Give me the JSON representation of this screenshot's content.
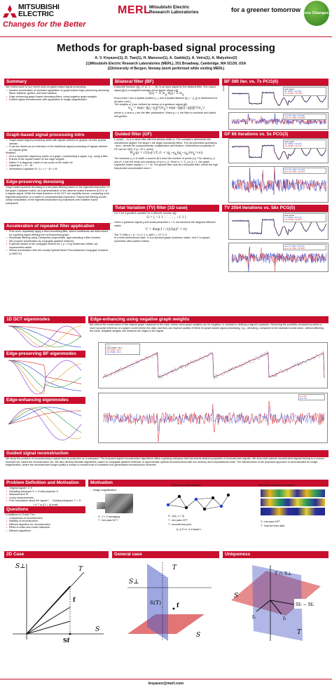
{
  "header": {
    "brand_line1": "MITSUBISHI",
    "brand_line2": "ELECTRIC",
    "brand_slogan": "Changes for the Better",
    "merl": "MERL",
    "merl_sub1": "Mitsubishi Electric",
    "merl_sub2": "Research Laboratories",
    "tagline": "for a greener tomorrow",
    "eco": "eco Changes",
    "title": "Methods for graph-based signal processing",
    "authors": "A. V. Knyazev(1), D. Tian(1), H. Mansour(1), A. Gadde(1), A. Vetro(1), A. Malyshev(2)",
    "aff1": "(1)Mitsubishi Electric Research Laboratories (MERL), 201 Broadway, Cambridge, MA 02139, USA",
    "aff2": "(2)University of Bergen, Norway (work performed while visiting MERL)"
  },
  "summary": {
    "title": "Summary",
    "intro": "We review some of our recent work on graph-based signal processing:",
    "bullets": [
      "Iterative acceleration of repeated application of graph-based edge-preserving denoising filters: bilateral, guided, and total variation",
      "Edge-enhancing graph-based denoising filters, using negative graph weights",
      "Guided signal reconstruction with application to image magnification"
    ]
  },
  "intro_sec": {
    "title": "Graph-based signal processing intro",
    "bullets": [
      "Graph-based signal processing deals with signals defined on graphs, as their special domain.",
      "It can be viewed as an extension of the traditional signal processing of signals defined on regular grids."
    ],
    "notation": "Notation:",
    "notes": [
      "W is a symmetric adjacency matrix of a graph, representing a signal, e.g., using a filter",
      "Entries of the square matrix W are edge weights",
      "Matrix D is diagonal, made of row-sums of the matrix W.",
      "Laplacian L = D − W",
      "Normalized Laplacian D^-1 L = I − D^-1 W"
    ]
  },
  "edge_sec": {
    "title": "Edge-preserving denoising",
    "text": "Graph-based spectral denoising is a low-pass filtering based on the eigendecomposition of the graph Laplacian matrix, as a generalization of the discrete cosine transform (DCT), of a regular signal. While the basis functions of the DCT are explicitly known, computing a full eigendecomposition of a matrix is computationally expensive. Polynomial filtering avoids costly computation of the eigendecomposition by projections onto suitable Krylov subspaces."
  },
  "accel_sec": {
    "title": "Acceleration of repeated filter application",
    "bullets": [
      "Prior work: repeatedly apply a fixed smoothing filter, where coefficients are determined by a guiding signal defining the corresponding graph.",
      "Accelerate filtering using Chebyshev polynomials, approximating a filter function.",
      "We propose acceleration by conjugate gradient methods.",
      "A special variant of the conjugate method for L y = 0 by Hesteness-Stiefel, we implemented earlier.",
      "Similar acceleration with the Locally Optimal Block Preconditioned Conjugate Gradient (LOBPCG)."
    ]
  },
  "bilateral": {
    "title": "Bilateral filter (BF)",
    "text1": "A discrete function x[j], j ∈ {1, 2, ..., N}, is an input signal for the bilateral filter. The output signal y[i] is a weighted average of the signal values x[j]:",
    "text2": "Every index i has a spatial position p_i, and a spatial distance ||p_i − p_j|| is determined for all pairs i and j.",
    "text3": "The weights w_ij are defined by means of a guidance signal g[i]:",
    "text4": "where σ_d and σ_r are the filter parameters. When g = x, the filter is nonlinear and called self-guided."
  },
  "guided": {
    "title": "Guided filter (GF)",
    "text1": "f_mean(·, ω) is a mean filter with the window width ω. The constant ε determines the smoothness degree: the larger ε the larger smoothing effect. The dot preceded operations, · and /, denote the componentwise multiplication and division. Arithmetical complexity of GF can be O(N). If g = W x, where",
    "text2": "The windows ω_k of width ω around all k have the number of points |ω|. The values μ_k and σ²_k are the mean and variance of g in ω_k. Since d_i = Σ_j w_ij = 1, the graph Laplacian matrix equals L = I − W. The guided filter acts as a low-pass filter, where the high frequencies accumulated near 0."
  },
  "tv": {
    "title": "Total Variation (TV) filter (1D case)",
    "text1": "Let G be a gradient operator for a discrete function x[j]:",
    "text2": "Given a guidance signal g and small parameter ε > 0, we introduce the diagonal diffusion matrix",
    "text3": "The TV filter y = (I + λ L)^-1 x, with L = G* C G.",
    "text4": "In a multi-dimensional case, G is a directed graph incidence matrix, and C is square, symmetric with positive entries."
  },
  "bf390": {
    "title": "BF 390 iter. vs. 7x PCG(6)",
    "legend1": [
      "clean signal",
      "BF: PSNR = 30.3782",
      "CG: PSNR = 30.3785"
    ],
    "legend2": [
      "error BF: SNR = 30.3782",
      "error CG: SNR = 30.3785"
    ],
    "ylabel1": "signal",
    "ylabel2": "signal error"
  },
  "gf66": {
    "title": "GF 66 iterations vs. 5x PCG(3)",
    "legend1": [
      "clean signal",
      "GF: PSNR = 33.2164",
      "CG: PSNR = 33.7147"
    ],
    "legend2": [
      "error GF: SNR = 33.2164",
      "error CG: SNR = 33.7147"
    ],
    "ylabel1": "signal",
    "ylabel2": "signal error"
  },
  "tv2554": {
    "title": "TV 2554 iterations vs. 58x PCG(5)",
    "legend1": [
      "clean signal",
      "TV: PSNR = 32.2713",
      "CG: PSNR = 32.2697"
    ],
    "legend2": [
      "error TV: SNR = 32.2713",
      "error CG: SNR = 32.2697"
    ],
    "ylabel1": "signal",
    "ylabel2": "signal error"
  },
  "dct": {
    "title": "1D DCT eigenmodes"
  },
  "bfeig": {
    "title": "Edge-preserving BF eigenmodes"
  },
  "eeig": {
    "title": "Edge-enhancing eigenmodes"
  },
  "neg": {
    "title": "Edge-enhancing using negative graph weights",
    "text": "We extend the construction of the original graph Laplacian to the case, where some graph weights can be negative, in contrast to defining a signed Laplacian. Removing the positivity constraint provides a more accurate inference of a graph model behind the data, and thus can improve quality of filters for graph-based signal processing, e.g., denoising, compared to the standard construction, without affecting the costs. Negative weights can enhance the edges in the signal.",
    "legend_top": [
      "noisy",
      "clean PSNR = 26.3",
      "CG: PSNR = 29.6",
      "CG: PSNR = 30.2"
    ],
    "legend_bot": [
      "error BF",
      "error CG"
    ]
  },
  "gsr": {
    "title": "Guided signal reconstruction",
    "text": "We study the problem of reconstructing a signal from its projection on a subspace. The proposed signal reconstruction algorithms utilize a guiding subspace that represents desired properties of reconstructed signals. We show that optimal reconstructed signals belong to a convex bounded set, called the reconstruction set. We also develop iterative algorithms, based on conjugate gradient methods, to approximate optimal reconstructions with low memory and computational costs. The effectiveness of the proposed approach is demonstrated for image magnification, where the reconstructed image quality is shown to exceed that of consistent and generalized reconstruction schemes."
  },
  "problem": {
    "title": "Problem Definition and Motivation",
    "bullets": [
      "Original signal f ∈ H",
      "Sampling subspace S ⊂ H with projector S",
      "Measurement Sf",
      "Lossy measurements",
      "Prior information about the signal f → Guiding subspace T ⊂ H"
    ],
    "ineq": "f ∈ T  or  ||T⊥ f|| small"
  },
  "questions": {
    "title": "Questions",
    "intro": "Conditions on S and T for:",
    "bullets": [
      "Uniqueness of reconstruction",
      "Stability of reconstruction",
      "Efficient algorithm for reconstruction",
      "Effect of noise and model mismatch",
      "Efficient algorithms"
    ]
  },
  "motivation": {
    "title": "Motivation",
    "image_mag": "Image magnification",
    "semi": "Semi-supervised learning",
    "bandwidth": "Bandwidth expansion of speech",
    "s1": "S : 2 × 2 averaging",
    "t1": "T : low pass DCT",
    "s2": "S : {x|x_u = 0}",
    "t2": "T : low pass GFT",
    "t2b": "T : smoothness prior",
    "graph_note": "{x_i} ∈ s.t. 's of graph L",
    "s3": "S : low pass DFT",
    "t3": "T : learned from data"
  },
  "case2d": {
    "title": "2D Case",
    "S": "S",
    "T": "T",
    "Sf": "Sf",
    "f": "f",
    "Sperp": "S⊥"
  },
  "general": {
    "title": "General case",
    "S": "S",
    "ST": "S(T)",
    "Sperp": "S⊥",
    "T": "T",
    "f": "f",
    "Sf": "Sf"
  },
  "uniq": {
    "title": "Uniqueness",
    "TS": "T ∩ S⊥",
    "Sf": "Sf₁ − Sf₂",
    "f1": "f₁",
    "f2": "f₂",
    "S": "S",
    "T": "T"
  },
  "footer": {
    "email": "knyazev@merl.com"
  }
}
